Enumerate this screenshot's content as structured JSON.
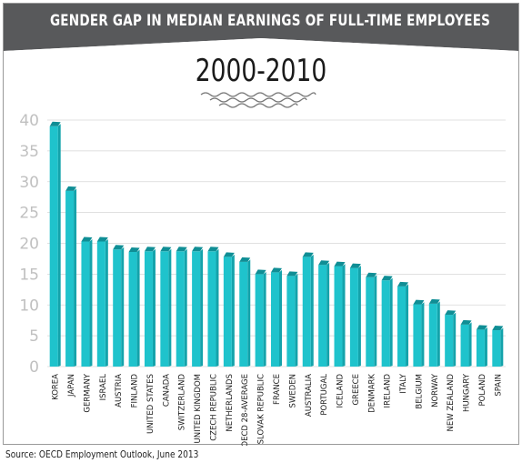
{
  "header": {
    "title": "GENDER GAP IN MEDIAN EARNINGS OF FULL-TIME EMPLOYEES",
    "subtitle": "2000-2010"
  },
  "footer": {
    "source": "Source: OECD Employment Outlook, June 2013"
  },
  "colors": {
    "header_bg": "#58595b",
    "bar_front": "#1fc3cc",
    "bar_side": "#14a3ab",
    "bar_top": "#0f8e95",
    "axis_text": "#c0c0c0",
    "grid": "#d6d6d6"
  },
  "chart_data": {
    "type": "bar",
    "title": "GENDER GAP IN MEDIAN EARNINGS OF FULL-TIME EMPLOYEES",
    "subtitle": "2000-2010",
    "xlabel": "",
    "ylabel": "",
    "ylim": [
      0,
      40
    ],
    "yticks": [
      0,
      5,
      10,
      15,
      20,
      25,
      30,
      35,
      40
    ],
    "grid": true,
    "categories": [
      "KOREA",
      "JAPAN",
      "GERMANY",
      "ISRAEL",
      "AUSTRIA",
      "FINLAND",
      "UNITED STATES",
      "CANADA",
      "SWITZERLAND",
      "UNITED KINGDOM",
      "CZECH REPUBLIC",
      "NETHERLANDS",
      "OECD 28-AVERAGE",
      "SLOVAK REPUBLIC",
      "FRANCE",
      "SWEDEN",
      "AUSTRALIA",
      "PORTUGAL",
      "ICELAND",
      "GREECE",
      "DENMARK",
      "IRELAND",
      "ITALY",
      "BELGIUM",
      "NORWAY",
      "NEW ZEALAND",
      "HUNGARY",
      "POLAND",
      "SPAIN"
    ],
    "values": [
      39,
      28.5,
      20.3,
      20.3,
      19,
      18.6,
      18.7,
      18.7,
      18.7,
      18.7,
      18.7,
      17.8,
      17,
      15,
      15.3,
      14.7,
      17.8,
      16.5,
      16.3,
      16,
      14.5,
      14,
      13,
      10.1,
      10.2,
      8.4,
      6.8,
      6,
      5.9
    ]
  }
}
